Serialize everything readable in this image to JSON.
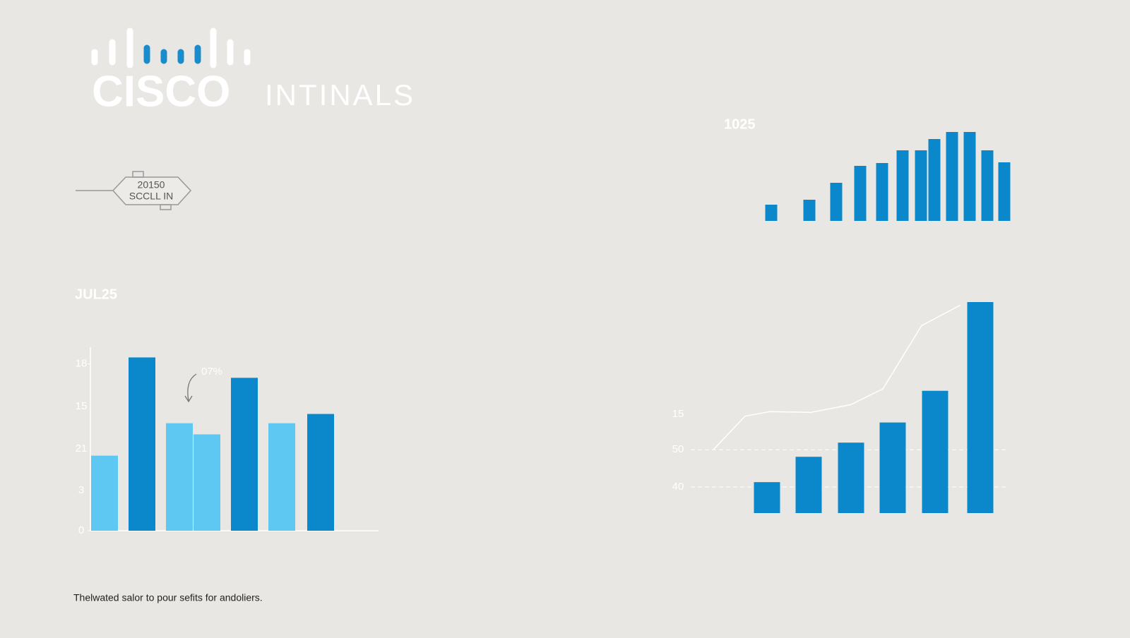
{
  "header": {
    "logo": "CISCO",
    "title": "INTINALS"
  },
  "badge": {
    "lines": [
      "20150",
      "SCCLL IN"
    ]
  },
  "footer": "Thelwated salor to pour sefits for andoliers.",
  "chart_data": [
    {
      "type": "bar",
      "title": "JUL25",
      "values": [
        8.1,
        18.7,
        11.6,
        10.4,
        16.5,
        11.6,
        12.6
      ],
      "colors": [
        "#5ec8f2",
        "#0b88cb",
        "#5ec8f2",
        "#5ec8f2",
        "#0b88cb",
        "#5ec8f2",
        "#0b88cb"
      ],
      "ylim": [
        0,
        19.8
      ],
      "yticks": [
        0,
        18
      ],
      "extra_tick_labels": [
        "3",
        "21",
        "15"
      ],
      "annotation": "07%"
    },
    {
      "type": "bar",
      "title": "1025",
      "values": [
        23,
        30,
        54,
        78,
        82,
        100,
        100,
        116,
        126,
        126,
        100,
        83
      ],
      "color": "#0b88cb",
      "ylim": [
        0,
        130
      ]
    },
    {
      "type": "bar",
      "values": [
        41.3,
        48.1,
        51.9,
        57.3,
        65.8,
        89.6
      ],
      "color": "#0b88cb",
      "line": {
        "values": [
          50,
          59,
          60.2,
          60,
          62.1,
          66.3,
          83.3,
          88.8
        ],
        "color": "#ffffff"
      },
      "ylim": [
        33,
        89.6
      ],
      "yticks": [
        40,
        50
      ],
      "extra_tick_labels": [
        "15"
      ],
      "grid": true
    }
  ]
}
